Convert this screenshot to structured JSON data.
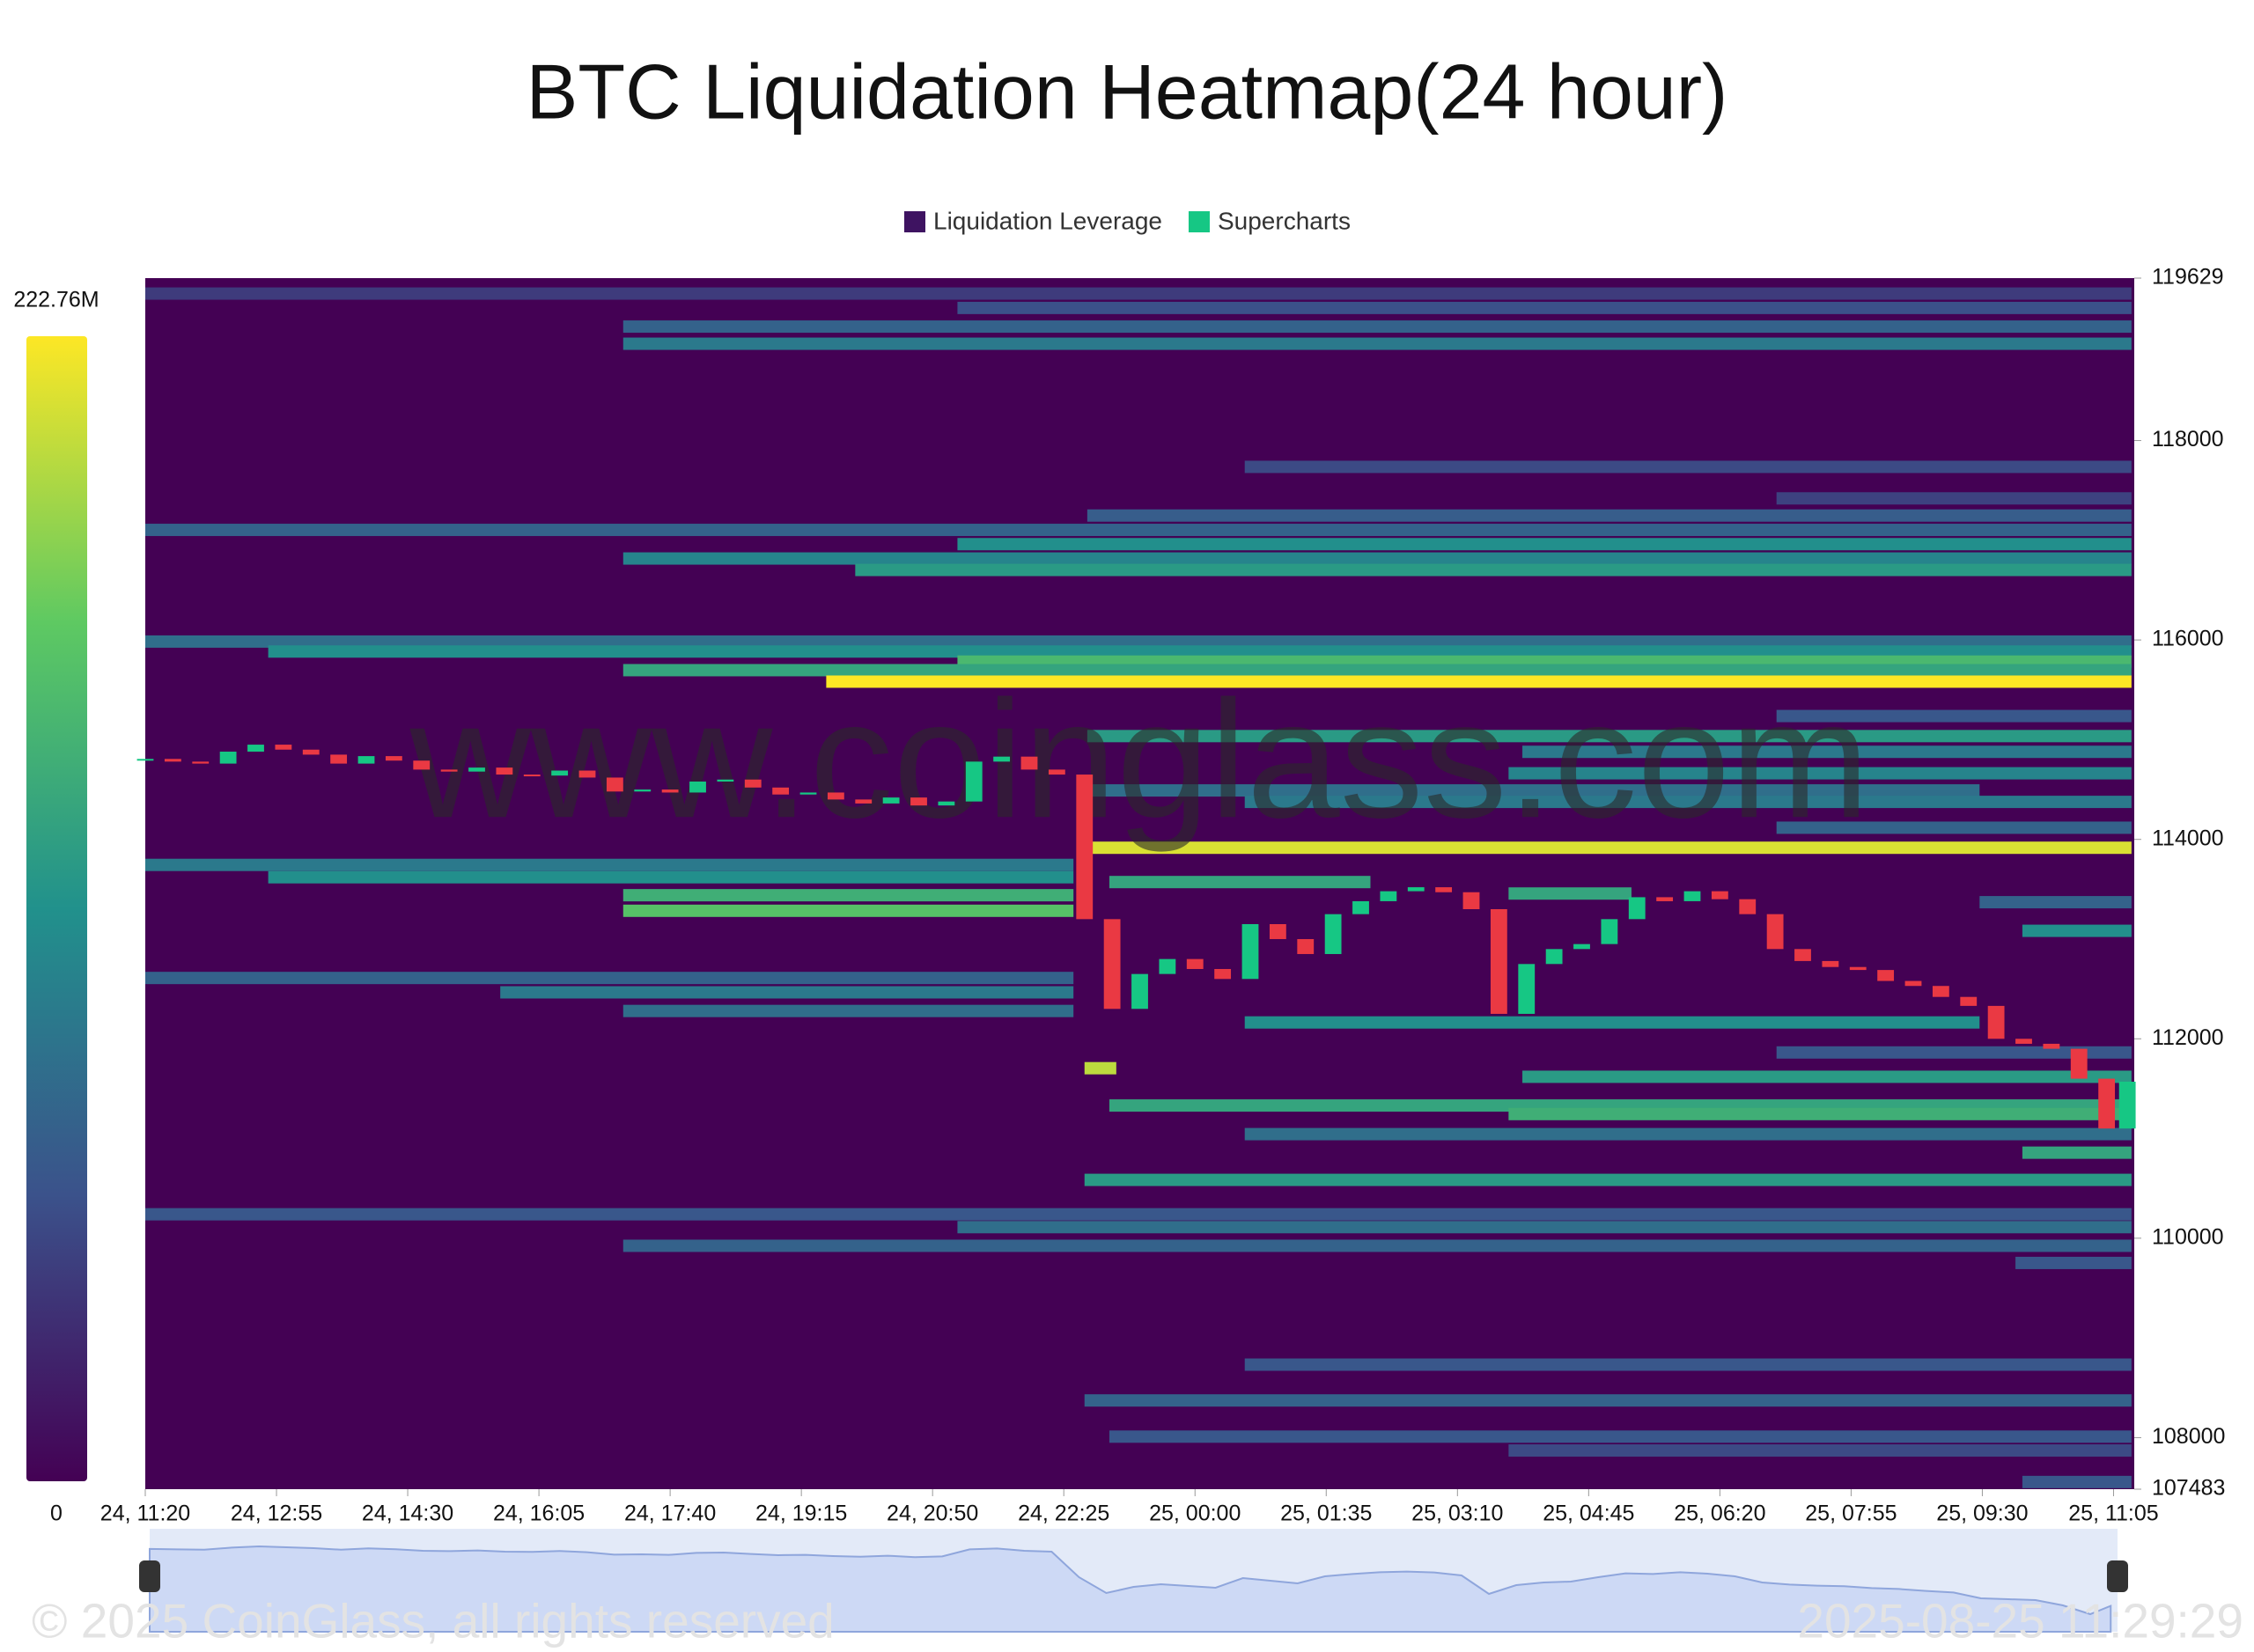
{
  "chart_data": {
    "type": "heatmap",
    "title": "BTC Liquidation Heatmap(24 hour)",
    "watermark": "www.coinglass.com",
    "footer": "© 2025 CoinGlass, all rights reserved",
    "timestamp": "2025-08-25 11:29:29",
    "colorscale": [
      "#440154",
      "#3b528b",
      "#21918c",
      "#5ec962",
      "#fde725"
    ],
    "zlim": [
      0,
      222.76
    ],
    "colorbar_ticks": [
      0,
      {
        "value": 222.76,
        "label": "222.76M"
      }
    ],
    "xlim": [
      0,
      1440
    ],
    "xticks": [
      {
        "value": 0,
        "label": "24, 11:20"
      },
      {
        "value": 95,
        "label": "24, 12:55"
      },
      {
        "value": 190,
        "label": "24, 14:30"
      },
      {
        "value": 285,
        "label": "24, 16:05"
      },
      {
        "value": 380,
        "label": "24, 17:40"
      },
      {
        "value": 475,
        "label": "24, 19:15"
      },
      {
        "value": 570,
        "label": "24, 20:50"
      },
      {
        "value": 665,
        "label": "24, 22:25"
      },
      {
        "value": 760,
        "label": "25, 00:00"
      },
      {
        "value": 855,
        "label": "25, 01:35"
      },
      {
        "value": 950,
        "label": "25, 03:10"
      },
      {
        "value": 1045,
        "label": "25, 04:45"
      },
      {
        "value": 1140,
        "label": "25, 06:20"
      },
      {
        "value": 1235,
        "label": "25, 07:55"
      },
      {
        "value": 1330,
        "label": "25, 09:30"
      },
      {
        "value": 1425,
        "label": "25, 11:05"
      }
    ],
    "ylim": [
      107483,
      119629
    ],
    "yticks": [
      107483,
      108000,
      110000,
      112000,
      114000,
      116000,
      118000,
      119629
    ],
    "series": [
      {
        "name": "Liquidation Leverage",
        "color": "#3e1361",
        "bands": [
          {
            "price": 119474,
            "start": 0,
            "end": 1438,
            "value": 40
          },
          {
            "price": 119330,
            "start": 588,
            "end": 1438,
            "value": 55
          },
          {
            "price": 119143,
            "start": 346,
            "end": 1438,
            "value": 70
          },
          {
            "price": 118971,
            "start": 346,
            "end": 1438,
            "value": 90
          },
          {
            "price": 117736,
            "start": 796,
            "end": 1438,
            "value": 50
          },
          {
            "price": 117420,
            "start": 1181,
            "end": 1438,
            "value": 45
          },
          {
            "price": 117248,
            "start": 682,
            "end": 1438,
            "value": 65
          },
          {
            "price": 117104,
            "start": 0,
            "end": 1438,
            "value": 70
          },
          {
            "price": 116961,
            "start": 588,
            "end": 1438,
            "value": 110
          },
          {
            "price": 116817,
            "start": 346,
            "end": 1438,
            "value": 100
          },
          {
            "price": 116702,
            "start": 514,
            "end": 1438,
            "value": 120
          },
          {
            "price": 115984,
            "start": 0,
            "end": 1438,
            "value": 80
          },
          {
            "price": 115884,
            "start": 89,
            "end": 1438,
            "value": 110
          },
          {
            "price": 115783,
            "start": 588,
            "end": 1438,
            "value": 150
          },
          {
            "price": 115697,
            "start": 346,
            "end": 1438,
            "value": 130
          },
          {
            "price": 115582,
            "start": 493,
            "end": 1438,
            "value": 222.76
          },
          {
            "price": 115237,
            "start": 1181,
            "end": 1438,
            "value": 60
          },
          {
            "price": 115036,
            "start": 682,
            "end": 1438,
            "value": 120
          },
          {
            "price": 114878,
            "start": 997,
            "end": 1438,
            "value": 90
          },
          {
            "price": 114663,
            "start": 987,
            "end": 1438,
            "value": 100
          },
          {
            "price": 114491,
            "start": 682,
            "end": 1328,
            "value": 80
          },
          {
            "price": 114376,
            "start": 796,
            "end": 1438,
            "value": 90
          },
          {
            "price": 114117,
            "start": 1181,
            "end": 1438,
            "value": 70
          },
          {
            "price": 113916,
            "start": 682,
            "end": 1438,
            "value": 210
          },
          {
            "price": 113744,
            "start": 0,
            "end": 672,
            "value": 90
          },
          {
            "price": 113620,
            "start": 89,
            "end": 672,
            "value": 110
          },
          {
            "price": 113572,
            "start": 698,
            "end": 887,
            "value": 130
          },
          {
            "price": 113457,
            "start": 987,
            "end": 1076,
            "value": 130
          },
          {
            "price": 113440,
            "start": 346,
            "end": 672,
            "value": 140
          },
          {
            "price": 113370,
            "start": 1328,
            "end": 1438,
            "value": 70
          },
          {
            "price": 113284,
            "start": 346,
            "end": 672,
            "value": 160
          },
          {
            "price": 113083,
            "start": 1359,
            "end": 1438,
            "value": 110
          },
          {
            "price": 112610,
            "start": 0,
            "end": 672,
            "value": 70
          },
          {
            "price": 112466,
            "start": 257,
            "end": 672,
            "value": 90
          },
          {
            "price": 112279,
            "start": 346,
            "end": 672,
            "value": 80
          },
          {
            "price": 112164,
            "start": 796,
            "end": 1328,
            "value": 110
          },
          {
            "price": 111863,
            "start": 1181,
            "end": 1438,
            "value": 60
          },
          {
            "price": 111705,
            "start": 680,
            "end": 703,
            "value": 200
          },
          {
            "price": 111619,
            "start": 997,
            "end": 1438,
            "value": 120
          },
          {
            "price": 111331,
            "start": 698,
            "end": 1438,
            "value": 130
          },
          {
            "price": 111245,
            "start": 987,
            "end": 1438,
            "value": 140
          },
          {
            "price": 111044,
            "start": 796,
            "end": 1438,
            "value": 80
          },
          {
            "price": 110858,
            "start": 1359,
            "end": 1438,
            "value": 130
          },
          {
            "price": 110585,
            "start": 680,
            "end": 1438,
            "value": 120
          },
          {
            "price": 110240,
            "start": 0,
            "end": 1438,
            "value": 60
          },
          {
            "price": 110111,
            "start": 588,
            "end": 1438,
            "value": 80
          },
          {
            "price": 109924,
            "start": 346,
            "end": 1438,
            "value": 70
          },
          {
            "price": 109752,
            "start": 1354,
            "end": 1438,
            "value": 60
          },
          {
            "price": 108732,
            "start": 796,
            "end": 1438,
            "value": 60
          },
          {
            "price": 108373,
            "start": 680,
            "end": 1438,
            "value": 70
          },
          {
            "price": 108010,
            "start": 698,
            "end": 1438,
            "value": 60
          },
          {
            "price": 107871,
            "start": 987,
            "end": 1438,
            "value": 50
          },
          {
            "price": 107555,
            "start": 1359,
            "end": 1438,
            "value": 60
          }
        ]
      },
      {
        "name": "Supercharts",
        "color": "#16c784",
        "down_color": "#ea3943",
        "x": [
          0,
          20,
          40,
          60,
          80,
          100,
          120,
          140,
          160,
          180,
          200,
          220,
          240,
          260,
          280,
          300,
          320,
          340,
          360,
          380,
          400,
          420,
          440,
          460,
          480,
          500,
          520,
          540,
          560,
          580,
          600,
          620,
          640,
          660,
          680,
          700,
          720,
          740,
          760,
          780,
          800,
          820,
          840,
          860,
          880,
          900,
          920,
          940,
          960,
          980,
          1000,
          1020,
          1040,
          1060,
          1080,
          1100,
          1120,
          1140,
          1160,
          1180,
          1200,
          1220,
          1240,
          1260,
          1280,
          1300,
          1320,
          1340,
          1360,
          1380,
          1400,
          1420,
          1435
        ],
        "values": [
          114807,
          114780,
          114760,
          114880,
          114950,
          114900,
          114850,
          114760,
          114835,
          114790,
          114700,
          114680,
          114720,
          114650,
          114640,
          114690,
          114620,
          114480,
          114500,
          114470,
          114580,
          114600,
          114520,
          114450,
          114470,
          114400,
          114360,
          114420,
          114340,
          114380,
          114780,
          114830,
          114700,
          114650,
          113200,
          112300,
          112650,
          112800,
          112700,
          112600,
          113150,
          113000,
          112850,
          113250,
          113380,
          113480,
          113520,
          113470,
          113300,
          112250,
          112750,
          112900,
          112950,
          113200,
          113420,
          113380,
          113480,
          113400,
          113250,
          112900,
          112780,
          112720,
          112690,
          112580,
          112530,
          112420,
          112330,
          112000,
          111950,
          111900,
          111600,
          111100,
          111570
        ]
      }
    ]
  }
}
